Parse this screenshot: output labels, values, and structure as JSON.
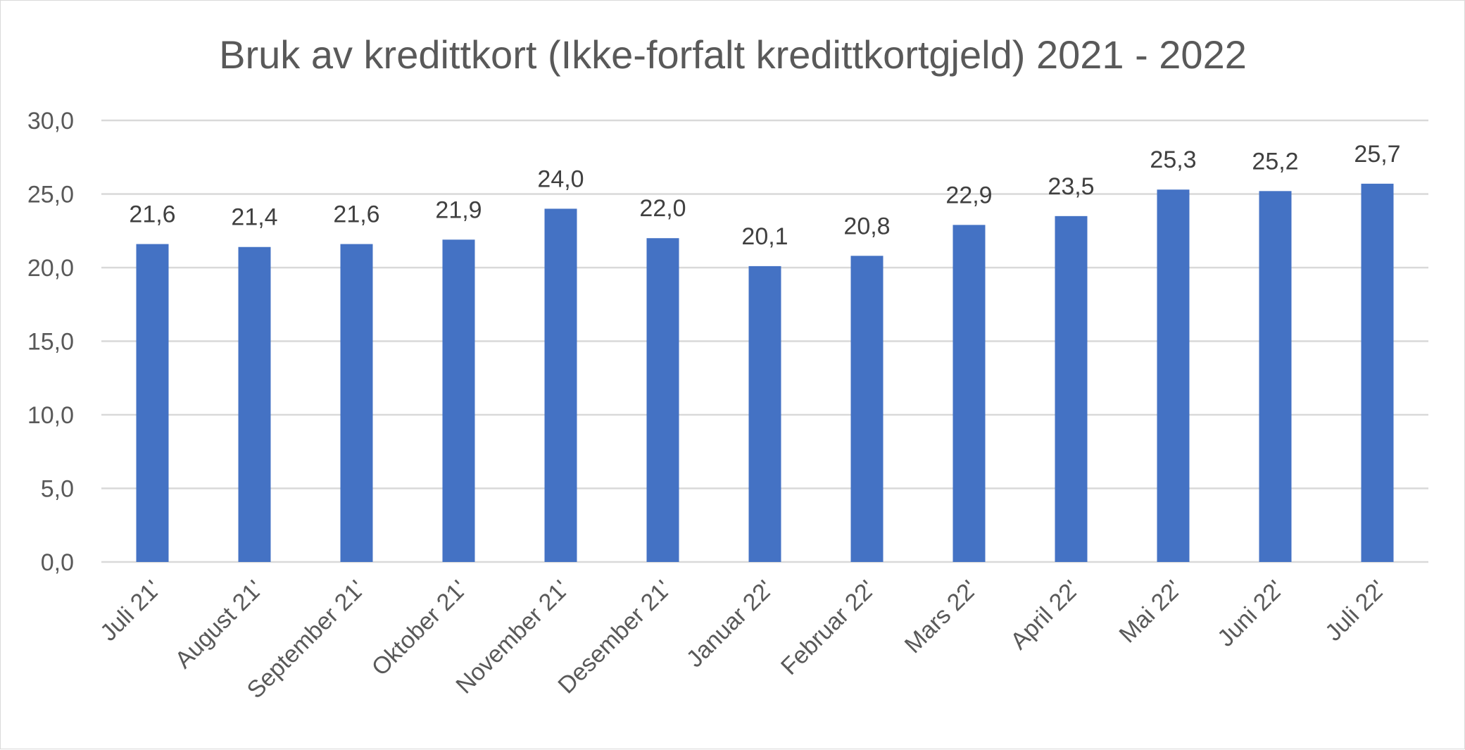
{
  "chart_data": {
    "type": "bar",
    "title": "Bruk av kredittkort (Ikke-forfalt kredittkortgjeld) 2021 - 2022",
    "xlabel": "",
    "ylabel": "",
    "categories": [
      "Juli 21'",
      "August 21'",
      "September 21'",
      "Oktober 21'",
      "November 21'",
      "Desember 21'",
      "Januar 22'",
      "Februar 22'",
      "Mars 22'",
      "April 22'",
      "Mai 22'",
      "Juni 22'",
      "Juli 22'"
    ],
    "values": [
      21.6,
      21.4,
      21.6,
      21.9,
      24.0,
      22.0,
      20.1,
      20.8,
      22.9,
      23.5,
      25.3,
      25.2,
      25.7
    ],
    "value_labels": [
      "21,6",
      "21,4",
      "21,6",
      "21,9",
      "24,0",
      "22,0",
      "20,1",
      "20,8",
      "22,9",
      "23,5",
      "25,3",
      "25,2",
      "25,7"
    ],
    "ylim": [
      0,
      30
    ],
    "yticks": [
      0,
      5,
      10,
      15,
      20,
      25,
      30
    ],
    "ytick_labels": [
      "0,0",
      "5,0",
      "10,0",
      "15,0",
      "20,0",
      "25,0",
      "30,0"
    ],
    "grid": true,
    "legend": "none",
    "colors": {
      "bar": "#4472c4",
      "grid": "#d9d9d9",
      "text": "#595959"
    }
  }
}
